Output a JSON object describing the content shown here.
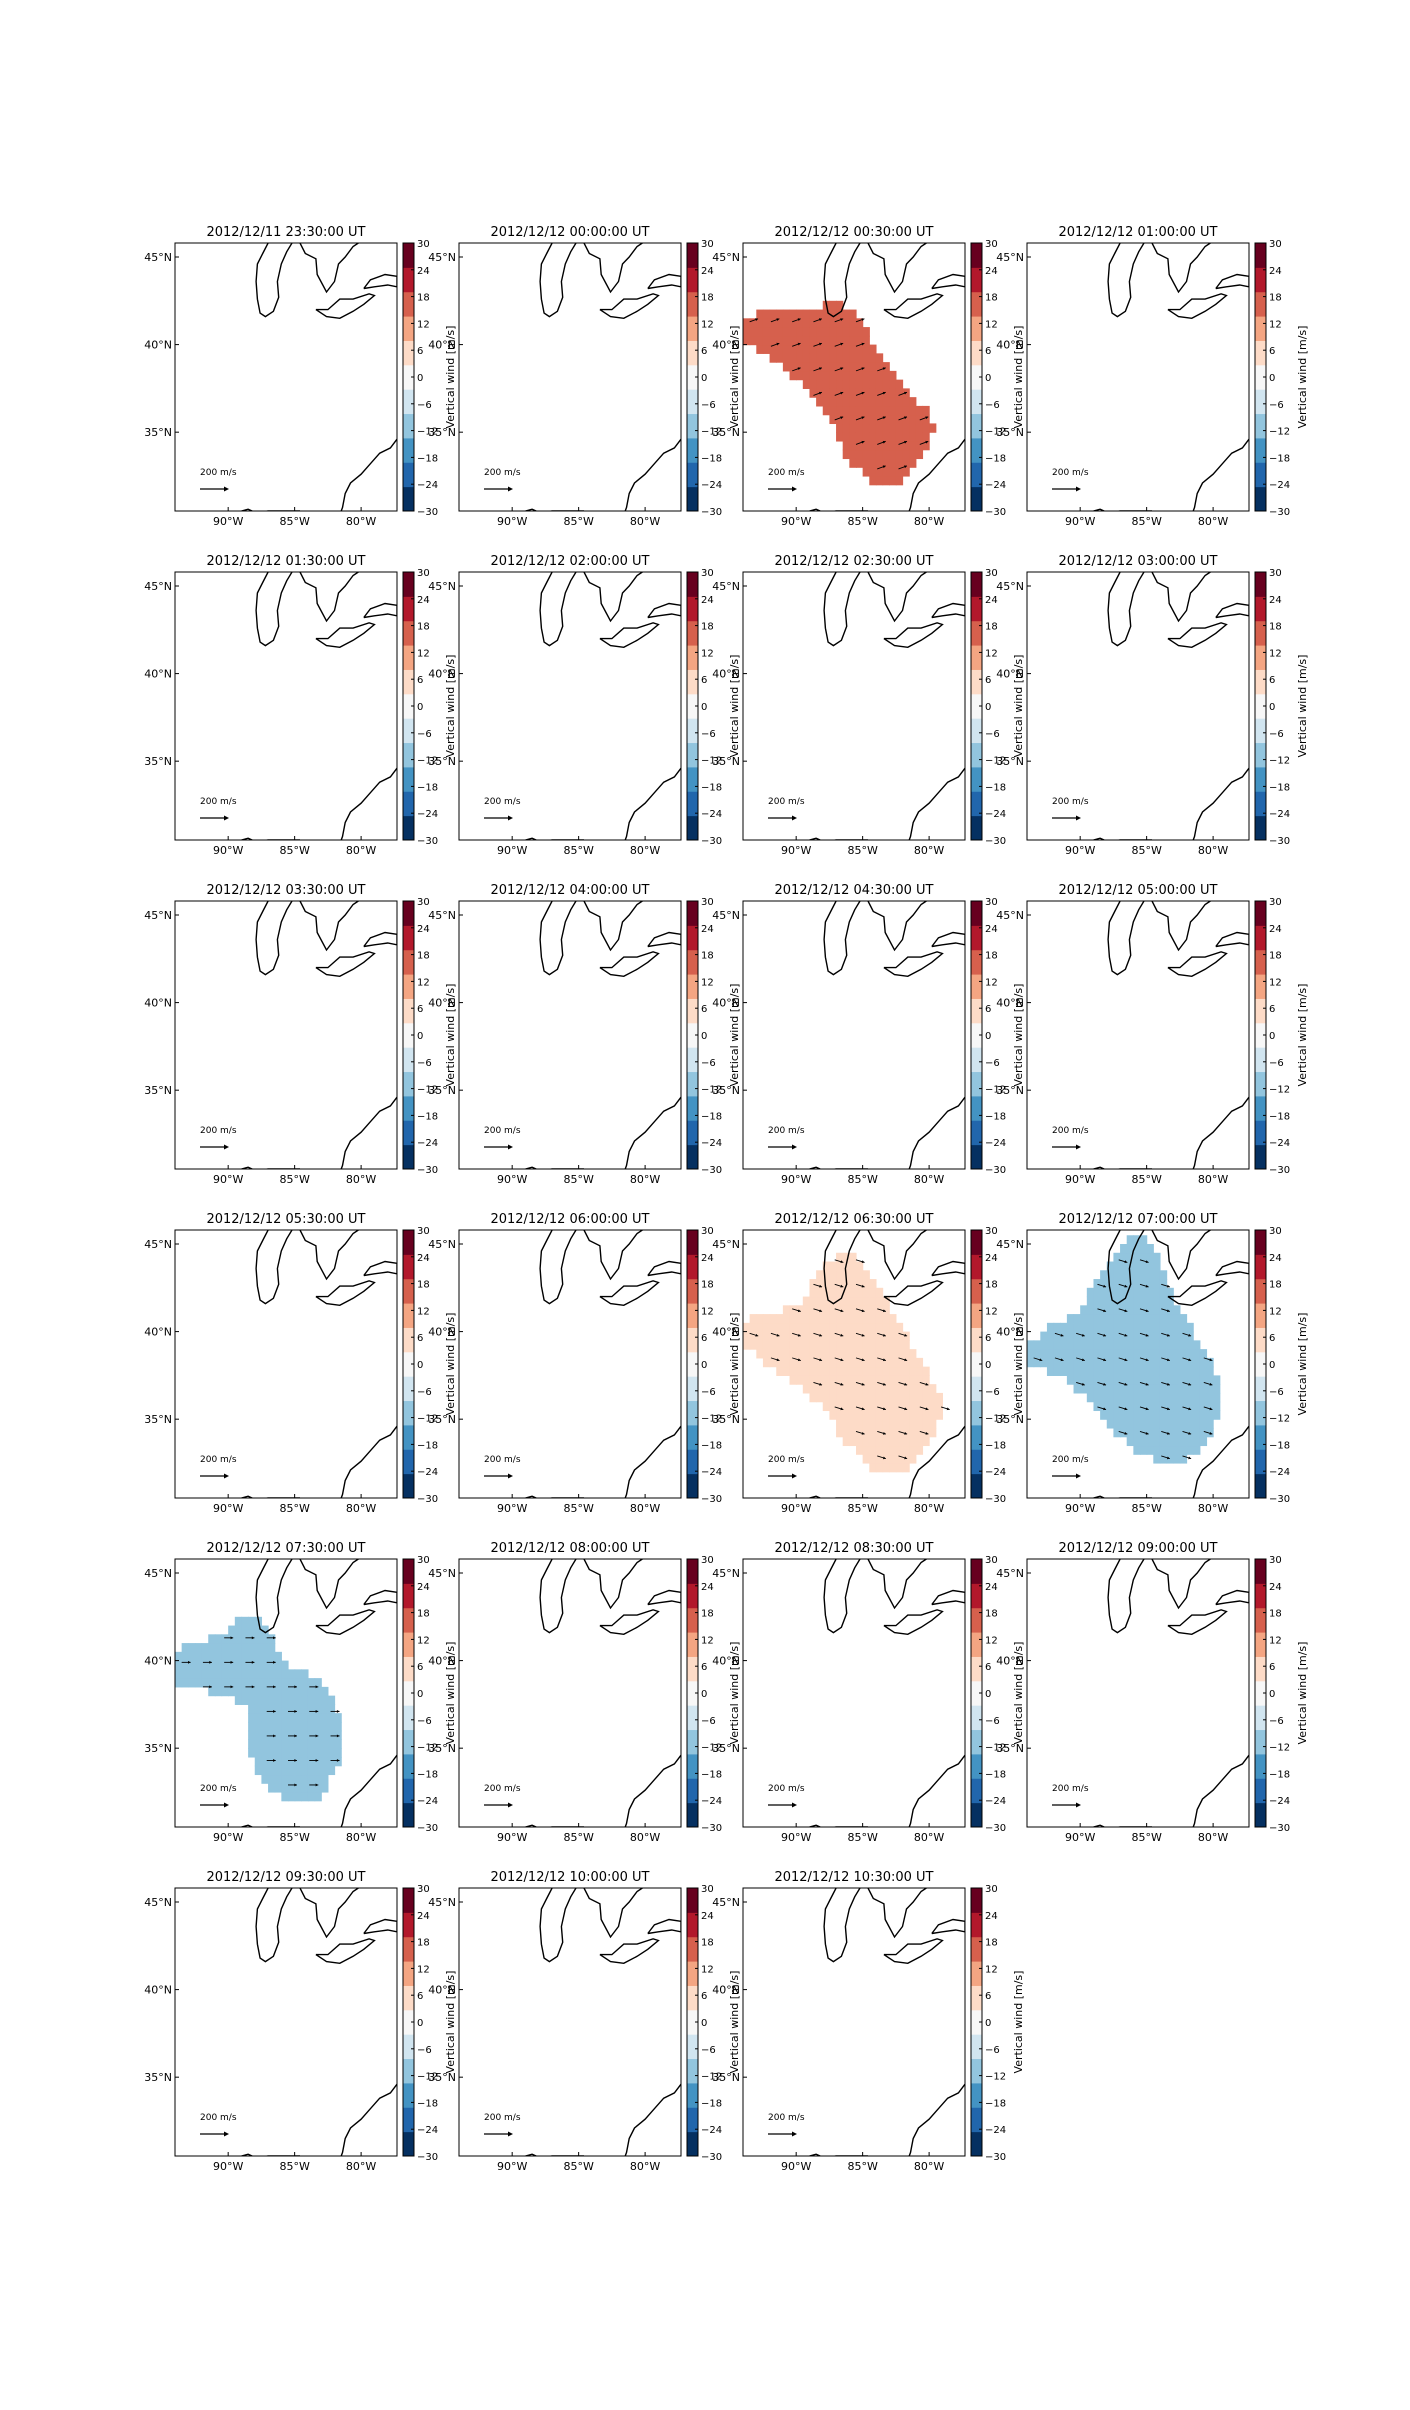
{
  "figure": {
    "colorbar_label": "Vertical wind [m/s]",
    "colorbar_ticks": [
      30,
      24,
      18,
      12,
      6,
      0,
      -6,
      -12,
      -18,
      -24,
      -30
    ],
    "colorbar_ticklabels": [
      "30",
      "24",
      "18",
      "12",
      "6",
      "0",
      "−6",
      "−12",
      "−18",
      "−24",
      "−30"
    ],
    "vmin": -30,
    "vmax": 30,
    "colormap": [
      "#053061",
      "#2166ac",
      "#4393c3",
      "#92c5de",
      "#d1e5f0",
      "#f7f7f7",
      "#fddbc7",
      "#f4a582",
      "#d6604d",
      "#b2182b",
      "#67001f"
    ],
    "x_ticks": [
      "90°W",
      "85°W",
      "80°W"
    ],
    "y_ticks": [
      "45°N",
      "40°N",
      "35°N"
    ],
    "quiver_key_label": "200 m/s",
    "map_extent": {
      "lon": [
        -94,
        -77.3
      ],
      "lat": [
        30.5,
        45.8
      ]
    }
  },
  "chart_data": [
    {
      "type": "heatmap",
      "title": "2012/12/11 23:30:00 UT",
      "value": null
    },
    {
      "type": "heatmap",
      "title": "2012/12/12 00:00:00 UT",
      "value": null
    },
    {
      "type": "heatmap",
      "title": "2012/12/12 00:30:00 UT",
      "value": 16,
      "region": "north-east",
      "arrow_dir": "east-northeast"
    },
    {
      "type": "heatmap",
      "title": "2012/12/12 01:00:00 UT",
      "value": null
    },
    {
      "type": "heatmap",
      "title": "2012/12/12 01:30:00 UT",
      "value": null
    },
    {
      "type": "heatmap",
      "title": "2012/12/12 02:00:00 UT",
      "value": null
    },
    {
      "type": "heatmap",
      "title": "2012/12/12 02:30:00 UT",
      "value": null
    },
    {
      "type": "heatmap",
      "title": "2012/12/12 03:00:00 UT",
      "value": null
    },
    {
      "type": "heatmap",
      "title": "2012/12/12 03:30:00 UT",
      "value": null
    },
    {
      "type": "heatmap",
      "title": "2012/12/12 04:00:00 UT",
      "value": null
    },
    {
      "type": "heatmap",
      "title": "2012/12/12 04:30:00 UT",
      "value": null
    },
    {
      "type": "heatmap",
      "title": "2012/12/12 05:00:00 UT",
      "value": null
    },
    {
      "type": "heatmap",
      "title": "2012/12/12 05:30:00 UT",
      "value": null
    },
    {
      "type": "heatmap",
      "title": "2012/12/12 06:00:00 UT",
      "value": null
    },
    {
      "type": "heatmap",
      "title": "2012/12/12 06:30:00 UT",
      "value": 3,
      "region": "wide",
      "arrow_dir": "east-southeast"
    },
    {
      "type": "heatmap",
      "title": "2012/12/12 07:00:00 UT",
      "value": -12,
      "region": "wide-north",
      "arrow_dir": "east-southeast"
    },
    {
      "type": "heatmap",
      "title": "2012/12/12 07:30:00 UT",
      "value": -12,
      "region": "west-double",
      "arrow_dir": "east"
    },
    {
      "type": "heatmap",
      "title": "2012/12/12 08:00:00 UT",
      "value": null
    },
    {
      "type": "heatmap",
      "title": "2012/12/12 08:30:00 UT",
      "value": null
    },
    {
      "type": "heatmap",
      "title": "2012/12/12 09:00:00 UT",
      "value": null
    },
    {
      "type": "heatmap",
      "title": "2012/12/12 09:30:00 UT",
      "value": null
    },
    {
      "type": "heatmap",
      "title": "2012/12/12 10:00:00 UT",
      "value": null
    },
    {
      "type": "heatmap",
      "title": "2012/12/12 10:30:00 UT",
      "value": null
    }
  ]
}
